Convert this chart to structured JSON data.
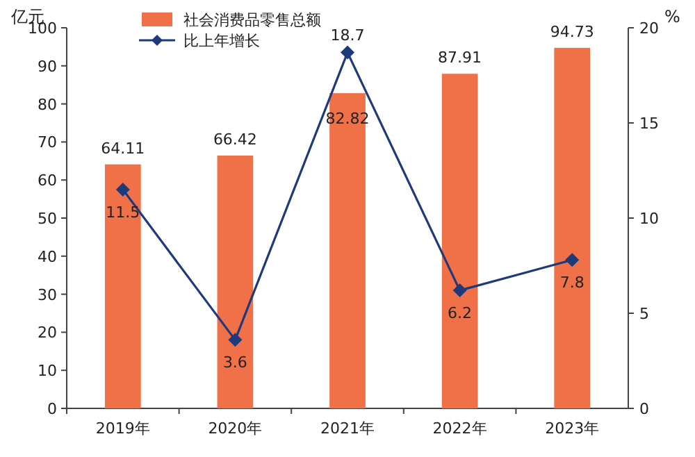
{
  "chart_data": {
    "type": "bar",
    "ylabel": "亿元",
    "y2label": "%",
    "categories": [
      "2019年",
      "2020年",
      "2021年",
      "2022年",
      "2023年"
    ],
    "series": [
      {
        "name": "社会消费品零售总额",
        "color": "#f07048",
        "values": [
          64.11,
          66.42,
          82.82,
          87.91,
          94.73
        ]
      },
      {
        "name": "比上年增长",
        "type": "line",
        "axis": "y2",
        "color": "#1f3a7a",
        "marker": "diamond",
        "values": [
          11.5,
          3.6,
          18.7,
          6.2,
          7.8
        ]
      }
    ],
    "ylim": [
      0,
      100
    ],
    "yticks": [
      0,
      10,
      20,
      30,
      40,
      50,
      60,
      70,
      80,
      90,
      100
    ],
    "y2lim": [
      0,
      20
    ],
    "y2ticks": [
      0,
      5,
      10,
      15,
      20
    ],
    "data_labels": true,
    "legend": "top"
  }
}
